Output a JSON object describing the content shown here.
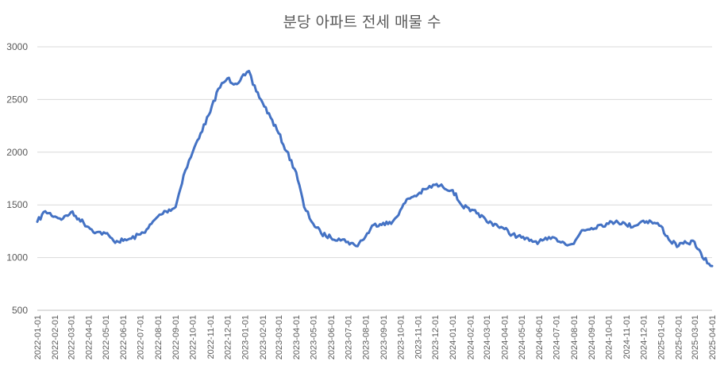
{
  "chart_data": {
    "type": "line",
    "title": "분당 아파트 전세 매물 수",
    "xlabel": "",
    "ylabel": "",
    "ylim": [
      500,
      3000
    ],
    "yticks": [
      500,
      1000,
      1500,
      2000,
      2500,
      3000
    ],
    "grid": true,
    "legend": "none",
    "color": "#4472C4",
    "x_ticks": [
      "2022-01-01",
      "2022-02-01",
      "2022-03-01",
      "2022-04-01",
      "2022-05-01",
      "2022-06-01",
      "2022-07-01",
      "2022-08-01",
      "2022-09-01",
      "2022-10-01",
      "2022-11-01",
      "2022-12-01",
      "2023-01-01",
      "2023-02-01",
      "2023-03-01",
      "2023-04-01",
      "2023-05-01",
      "2023-06-01",
      "2023-07-01",
      "2023-08-01",
      "2023-09-01",
      "2023-10-01",
      "2023-11-01",
      "2023-12-01",
      "2024-01-01",
      "2024-02-01",
      "2024-03-01",
      "2024-04-01",
      "2024-05-01",
      "2024-06-01",
      "2024-07-01",
      "2024-08-01",
      "2024-09-01",
      "2024-10-01",
      "2024-11-01",
      "2024-12-01",
      "2025-01-01",
      "2025-02-01",
      "2025-03-01",
      "2025-04-01"
    ],
    "series": [
      {
        "x": [
          "2022-01-01",
          "2022-01-15",
          "2022-02-01",
          "2022-02-15",
          "2022-03-01",
          "2022-03-15",
          "2022-04-01",
          "2022-04-15",
          "2022-05-01",
          "2022-05-15",
          "2022-06-01",
          "2022-06-15",
          "2022-07-01",
          "2022-07-15",
          "2022-08-01",
          "2022-08-15",
          "2022-09-01",
          "2022-09-15",
          "2022-10-01",
          "2022-10-15",
          "2022-11-01",
          "2022-11-15",
          "2022-12-01",
          "2022-12-15",
          "2023-01-01",
          "2023-01-08",
          "2023-01-15",
          "2023-02-01",
          "2023-02-15",
          "2023-03-01",
          "2023-03-15",
          "2023-04-01",
          "2023-04-15",
          "2023-05-01",
          "2023-05-15",
          "2023-06-01",
          "2023-06-15",
          "2023-07-01",
          "2023-07-15",
          "2023-08-01",
          "2023-08-15",
          "2023-09-01",
          "2023-09-15",
          "2023-10-01",
          "2023-10-15",
          "2023-11-01",
          "2023-11-15",
          "2023-12-01",
          "2023-12-15",
          "2024-01-01",
          "2024-01-15",
          "2024-02-01",
          "2024-02-15",
          "2024-03-01",
          "2024-03-15",
          "2024-04-01",
          "2024-04-15",
          "2024-05-01",
          "2024-05-15",
          "2024-06-01",
          "2024-06-15",
          "2024-07-01",
          "2024-07-15",
          "2024-08-01",
          "2024-08-15",
          "2024-09-01",
          "2024-09-15",
          "2024-10-01",
          "2024-10-15",
          "2024-11-01",
          "2024-11-15",
          "2024-12-01",
          "2024-12-15",
          "2025-01-01",
          "2025-01-15",
          "2025-02-01",
          "2025-02-15",
          "2025-03-01",
          "2025-03-15",
          "2025-04-01"
        ],
        "values": [
          1340,
          1440,
          1390,
          1370,
          1430,
          1370,
          1290,
          1240,
          1230,
          1160,
          1160,
          1180,
          1220,
          1280,
          1390,
          1440,
          1480,
          1780,
          2000,
          2180,
          2380,
          2600,
          2700,
          2650,
          2730,
          2770,
          2640,
          2470,
          2330,
          2180,
          2010,
          1810,
          1480,
          1320,
          1230,
          1190,
          1180,
          1150,
          1110,
          1200,
          1310,
          1330,
          1320,
          1450,
          1560,
          1600,
          1650,
          1690,
          1670,
          1640,
          1510,
          1440,
          1420,
          1340,
          1320,
          1270,
          1220,
          1190,
          1160,
          1150,
          1170,
          1180,
          1140,
          1130,
          1260,
          1280,
          1310,
          1320,
          1350,
          1310,
          1300,
          1350,
          1340,
          1300,
          1170,
          1110,
          1140,
          1150,
          1000,
          920
        ]
      }
    ]
  }
}
